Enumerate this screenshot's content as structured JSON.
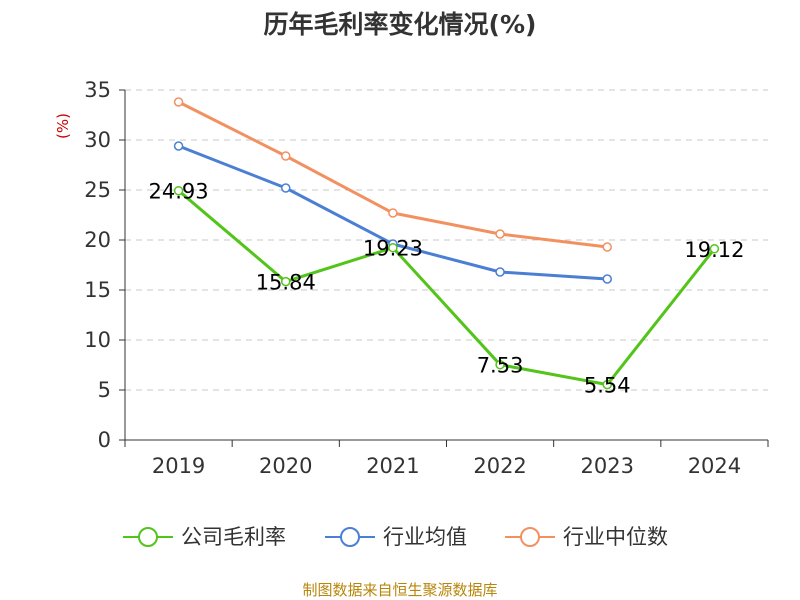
{
  "chart_data": {
    "type": "line",
    "title": "历年毛利率变化情况(%)",
    "unit_label": "(%)",
    "xlabel": "",
    "ylabel": "",
    "categories": [
      "2019",
      "2020",
      "2021",
      "2022",
      "2023",
      "2024"
    ],
    "ylim": [
      0,
      35
    ],
    "yticks": [
      "0",
      "5",
      "10",
      "15",
      "20",
      "25",
      "30",
      "35"
    ],
    "grid": true,
    "legend_position": "bottom",
    "series": [
      {
        "name": "公司毛利率",
        "color": "#52c41a",
        "values": [
          24.93,
          15.84,
          19.23,
          7.53,
          5.54,
          19.12
        ],
        "labels": [
          "24.93",
          "15.84",
          "19.23",
          "7.53",
          "5.54",
          "19.12"
        ]
      },
      {
        "name": "行业均值",
        "color": "#4a7fd4",
        "values": [
          29.4,
          25.2,
          19.6,
          16.8,
          16.1,
          null
        ]
      },
      {
        "name": "行业中位数",
        "color": "#f39060",
        "values": [
          33.8,
          28.4,
          22.7,
          20.6,
          19.3,
          null
        ]
      }
    ]
  },
  "source": "制图数据来自恒生聚源数据库"
}
